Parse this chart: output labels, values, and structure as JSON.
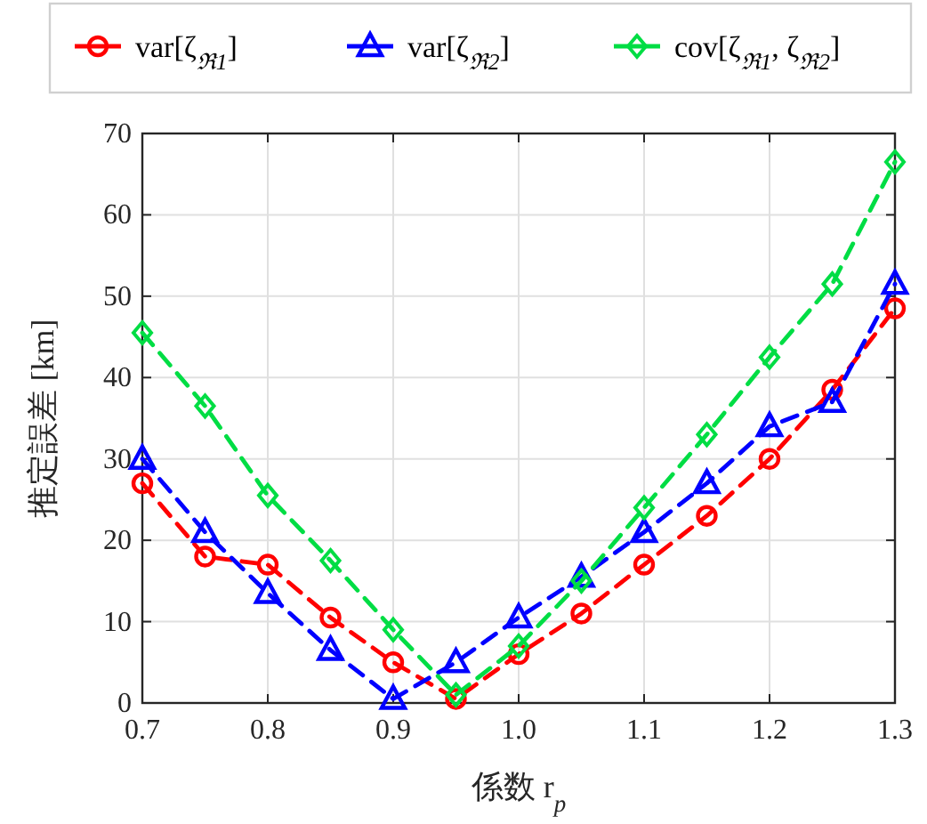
{
  "chart_data": {
    "type": "line",
    "xlabel": "係数 r$_{p}$",
    "ylabel": "推定誤差 [km]",
    "x": [
      0.7,
      0.75,
      0.8,
      0.85,
      0.9,
      0.95,
      1.0,
      1.05,
      1.1,
      1.15,
      1.2,
      1.25,
      1.3
    ],
    "series": [
      {
        "name": "var[ζ$_{ℜ1}$]",
        "color": "#ff0000",
        "marker": "circle",
        "values": [
          27,
          18,
          17,
          10.5,
          5,
          0.5,
          6,
          11,
          17,
          23,
          30,
          38.5,
          48.5
        ]
      },
      {
        "name": "var[ζ$_{ℜ2}$]",
        "color": "#0000ff",
        "marker": "triangle",
        "values": [
          30,
          21,
          13.5,
          6.5,
          0.5,
          5,
          10.5,
          15.5,
          21,
          27,
          34,
          37,
          51.5
        ]
      },
      {
        "name": "cov[ζ$_{ℜ1}$, ζ$_{ℜ2}$]",
        "color": "#00dd44",
        "marker": "diamond",
        "values": [
          45.5,
          36.5,
          25.5,
          17.5,
          9,
          1,
          7,
          15,
          24,
          33,
          42.5,
          51.5,
          66.5
        ]
      }
    ],
    "xlim": [
      0.7,
      1.3
    ],
    "xticks": [
      0.7,
      0.8,
      0.9,
      {
        "value": 1,
        "label": "1.0"
      },
      1.1,
      1.2,
      1.3
    ],
    "ylim": [
      0,
      70
    ],
    "yticks": [
      0,
      10,
      20,
      30,
      40,
      50,
      60,
      70
    ],
    "grid": true,
    "legend": "top",
    "line_style": "dashed"
  }
}
